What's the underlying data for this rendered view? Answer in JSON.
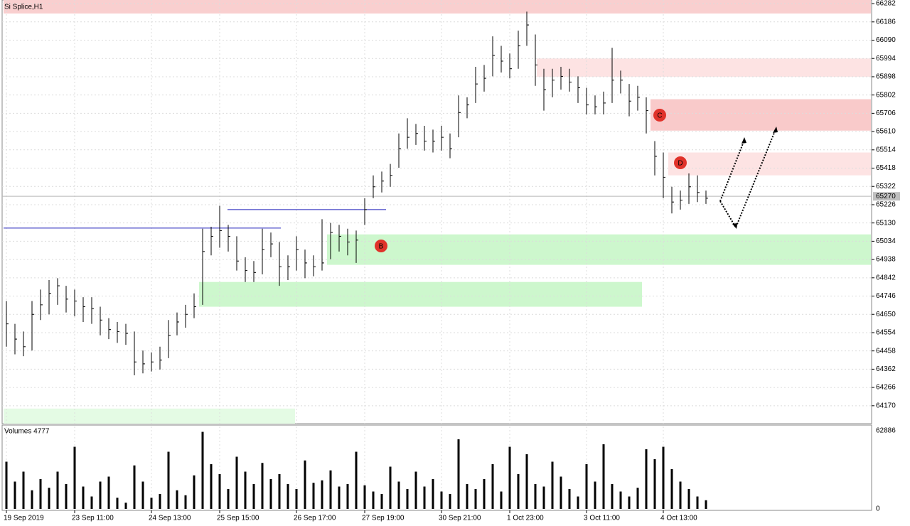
{
  "chart_data": {
    "type": "ohlc",
    "title": "Si Splice,H1",
    "categories": [
      "19 Sep 2019",
      null,
      null,
      null,
      null,
      null,
      null,
      null,
      "23 Sep 11:00",
      null,
      null,
      null,
      null,
      null,
      null,
      null,
      null,
      "24 Sep 13:00",
      null,
      null,
      null,
      null,
      null,
      null,
      null,
      "25 Sep 15:00",
      null,
      null,
      null,
      null,
      null,
      null,
      null,
      null,
      "26 Sep 17:00",
      null,
      null,
      null,
      null,
      null,
      null,
      null,
      "27 Sep 19:00",
      null,
      null,
      null,
      null,
      null,
      null,
      null,
      null,
      "30 Sep 21:00",
      null,
      null,
      null,
      null,
      null,
      null,
      null,
      "1 Oct 23:00",
      null,
      null,
      null,
      null,
      null,
      null,
      null,
      null,
      "3 Oct 11:00",
      null,
      null,
      null,
      null,
      null,
      null,
      null,
      null,
      "4 Oct 13:00",
      null,
      null,
      null,
      null,
      null
    ],
    "high": [
      64720,
      64600,
      64560,
      64720,
      64780,
      64830,
      64840,
      64800,
      64780,
      64740,
      64740,
      64690,
      64630,
      64610,
      64600,
      64560,
      64460,
      64450,
      64480,
      64620,
      64660,
      64700,
      64760,
      65100,
      65110,
      65220,
      65120,
      65060,
      64950,
      64930,
      65100,
      65080,
      65030,
      64960,
      65060,
      64990,
      64960,
      65150,
      65130,
      65120,
      65100,
      65090,
      65260,
      65380,
      65400,
      65440,
      65600,
      65680,
      65650,
      65640,
      65620,
      65640,
      65600,
      65800,
      65790,
      65950,
      65960,
      66110,
      66060,
      66020,
      66140,
      66240,
      66120,
      65940,
      65940,
      65950,
      65940,
      65900,
      65840,
      65800,
      65820,
      66050,
      65930,
      65860,
      65850,
      65790,
      65560,
      65500,
      65320,
      65300,
      65390,
      65380,
      65300
    ],
    "low": [
      64480,
      64440,
      64430,
      64460,
      64620,
      64650,
      64700,
      64660,
      64640,
      64610,
      64600,
      64540,
      64520,
      64500,
      64490,
      64330,
      64340,
      64350,
      64360,
      64420,
      64540,
      64580,
      64630,
      64700,
      64960,
      65000,
      64980,
      64880,
      64820,
      64820,
      64860,
      64950,
      64800,
      64830,
      64880,
      64840,
      64850,
      64880,
      64940,
      64980,
      64960,
      64920,
      65120,
      65260,
      65290,
      65320,
      65420,
      65520,
      65540,
      65510,
      65500,
      65510,
      65470,
      65580,
      65680,
      65760,
      65820,
      65900,
      65920,
      65890,
      65940,
      66060,
      65850,
      65720,
      65790,
      65830,
      65820,
      65760,
      65700,
      65700,
      65700,
      65760,
      65810,
      65690,
      65720,
      65600,
      65380,
      65260,
      65180,
      65200,
      65230,
      65240,
      65230
    ],
    "close": [
      64600,
      64520,
      64480,
      64650,
      64700,
      64760,
      64800,
      64730,
      64720,
      64690,
      64680,
      64620,
      64570,
      64560,
      64550,
      64400,
      64390,
      64400,
      64410,
      64540,
      64610,
      64650,
      64690,
      64980,
      65060,
      65090,
      65060,
      64930,
      64880,
      64870,
      64990,
      65020,
      64900,
      64900,
      64990,
      64920,
      64900,
      64920,
      65080,
      65060,
      65030,
      65040,
      65200,
      65320,
      65350,
      65380,
      65520,
      65580,
      65600,
      65560,
      65560,
      65580,
      65520,
      65710,
      65750,
      65860,
      65890,
      66010,
      65980,
      65940,
      66060,
      66170,
      65960,
      65830,
      65880,
      65900,
      65870,
      65840,
      65750,
      65740,
      65760,
      65880,
      65880,
      65770,
      65790,
      65720,
      65480,
      65370,
      65240,
      65250,
      65320,
      65290,
      65260
    ],
    "color": "#000000",
    "ylim": [
      64076,
      66301
    ],
    "yticks": [
      66282,
      66186,
      66090,
      65994,
      65898,
      65802,
      65706,
      65610,
      65514,
      65418,
      65322,
      65226,
      65130,
      65034,
      64938,
      64842,
      64746,
      64650,
      64554,
      64458,
      64362,
      64266,
      64170
    ],
    "grid": true,
    "current_price": 65270,
    "zones": [
      {
        "low": 66230,
        "high": 66301,
        "color": "#f9cfcf"
      },
      {
        "low": 65898,
        "high": 65994,
        "color": "#fde3e3"
      },
      {
        "low": 65615,
        "high": 65780,
        "color": "#f9caca"
      },
      {
        "low": 65380,
        "high": 65500,
        "color": "#fde3e3"
      },
      {
        "low": 64910,
        "high": 65070,
        "color": "#cdf7cd"
      },
      {
        "low": 64690,
        "high": 64820,
        "color": "#cdf7cd"
      },
      {
        "low": 64076,
        "high": 64155,
        "color": "#e4fbe4"
      }
    ],
    "levels": [
      {
        "value": 65103,
        "color": "#2222bb"
      },
      {
        "value": 65200,
        "color": "#2222bb"
      }
    ],
    "annotations": [
      "B",
      "C",
      "D"
    ],
    "volume": {
      "title": "Volumes 4777",
      "values": [
        38000,
        22000,
        30000,
        15000,
        24000,
        17000,
        30000,
        20000,
        50000,
        18000,
        10000,
        22000,
        26000,
        9000,
        5000,
        35000,
        22000,
        9000,
        12000,
        46000,
        15000,
        11000,
        27000,
        62000,
        36000,
        28000,
        16000,
        42000,
        30000,
        20000,
        37000,
        24000,
        28000,
        20000,
        16000,
        39000,
        21000,
        23000,
        31000,
        18000,
        20000,
        46000,
        19000,
        14000,
        12000,
        34000,
        22000,
        16000,
        30000,
        18000,
        24000,
        14000,
        12000,
        56000,
        20000,
        16000,
        24000,
        36000,
        14000,
        50000,
        28000,
        44000,
        20000,
        18000,
        38000,
        26000,
        16000,
        10000,
        36000,
        22000,
        52000,
        20000,
        14000,
        10000,
        17000,
        48000,
        40000,
        50000,
        32000,
        22000,
        16000,
        10000,
        7000
      ],
      "ylim": [
        0,
        62886
      ],
      "yticks": [
        62886,
        0
      ],
      "color": "#000000"
    }
  }
}
